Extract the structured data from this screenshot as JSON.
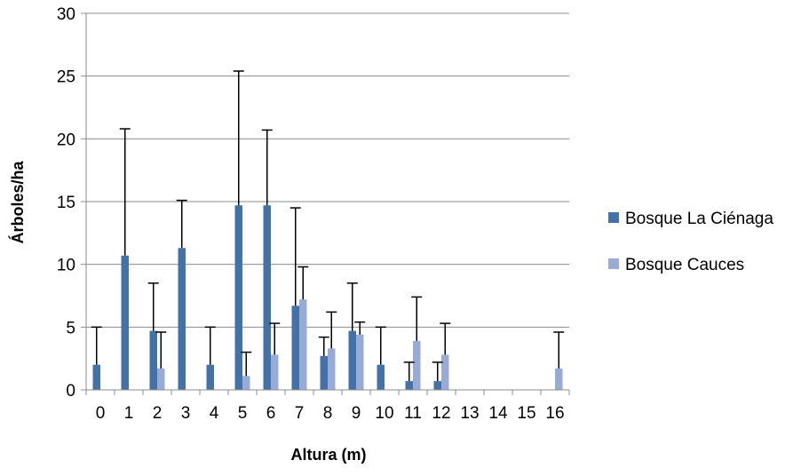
{
  "chart_data": {
    "type": "bar",
    "title": "",
    "xlabel": "Altura (m)",
    "ylabel": "Árboles/ha",
    "ylim": [
      0,
      30
    ],
    "yticks": [
      0,
      5,
      10,
      15,
      20,
      25,
      30
    ],
    "grid": "horizontal",
    "legend_position": "right",
    "categories": [
      "0",
      "1",
      "2",
      "3",
      "4",
      "5",
      "6",
      "7",
      "8",
      "9",
      "10",
      "11",
      "12",
      "13",
      "14",
      "15",
      "16"
    ],
    "series": [
      {
        "name": "Bosque La Ciénaga",
        "color": "#4472a8",
        "values": [
          2.0,
          10.7,
          4.7,
          11.3,
          2.0,
          14.7,
          14.7,
          6.7,
          2.7,
          4.7,
          2.0,
          0.7,
          0.7,
          0,
          0,
          0,
          0
        ],
        "error_upper": [
          5.0,
          20.8,
          8.5,
          15.1,
          5.0,
          25.4,
          20.7,
          14.5,
          4.2,
          8.5,
          5.0,
          2.2,
          2.2,
          null,
          null,
          null,
          null
        ]
      },
      {
        "name": "Bosque Cauces",
        "color": "#98abd6",
        "values": [
          0,
          0,
          1.7,
          0,
          0,
          1.1,
          2.8,
          7.2,
          3.3,
          4.4,
          0,
          3.9,
          2.8,
          0,
          0,
          0,
          1.7
        ],
        "error_upper": [
          null,
          null,
          4.6,
          null,
          null,
          3.0,
          5.3,
          9.8,
          6.2,
          5.4,
          null,
          7.4,
          5.3,
          null,
          null,
          null,
          4.6
        ]
      }
    ]
  }
}
